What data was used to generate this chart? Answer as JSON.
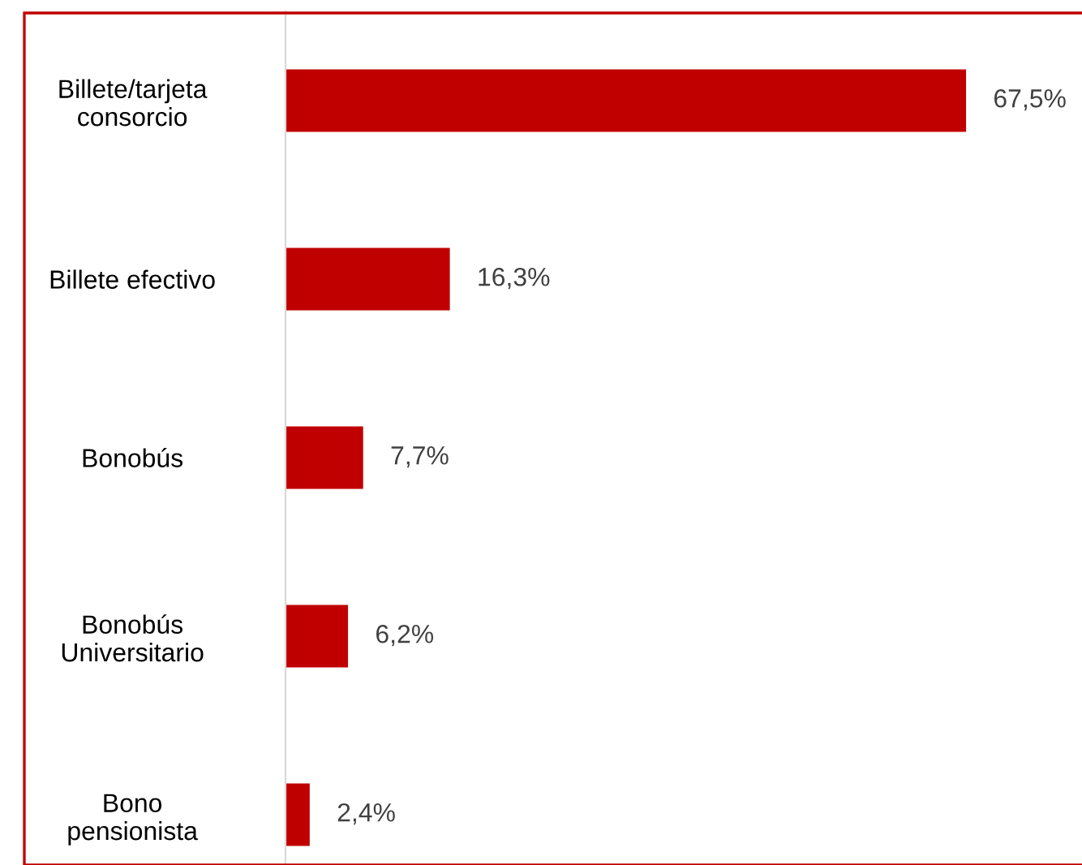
{
  "chart_data": {
    "type": "bar",
    "orientation": "horizontal",
    "categories": [
      "Billete/tarjeta\nconsorcio",
      "Billete efectivo",
      "Bonobús",
      "Bonobús\nUniversitario",
      "Bono\npensionista"
    ],
    "values": [
      67.5,
      16.3,
      7.7,
      6.2,
      2.4
    ],
    "value_labels": [
      "67,5%",
      "16,3%",
      "7,7%",
      "6,2%",
      "2,4%"
    ],
    "color": "#c00000",
    "xlim": [
      0,
      79
    ],
    "grid": false,
    "legend": false,
    "tick_labels": "y"
  }
}
